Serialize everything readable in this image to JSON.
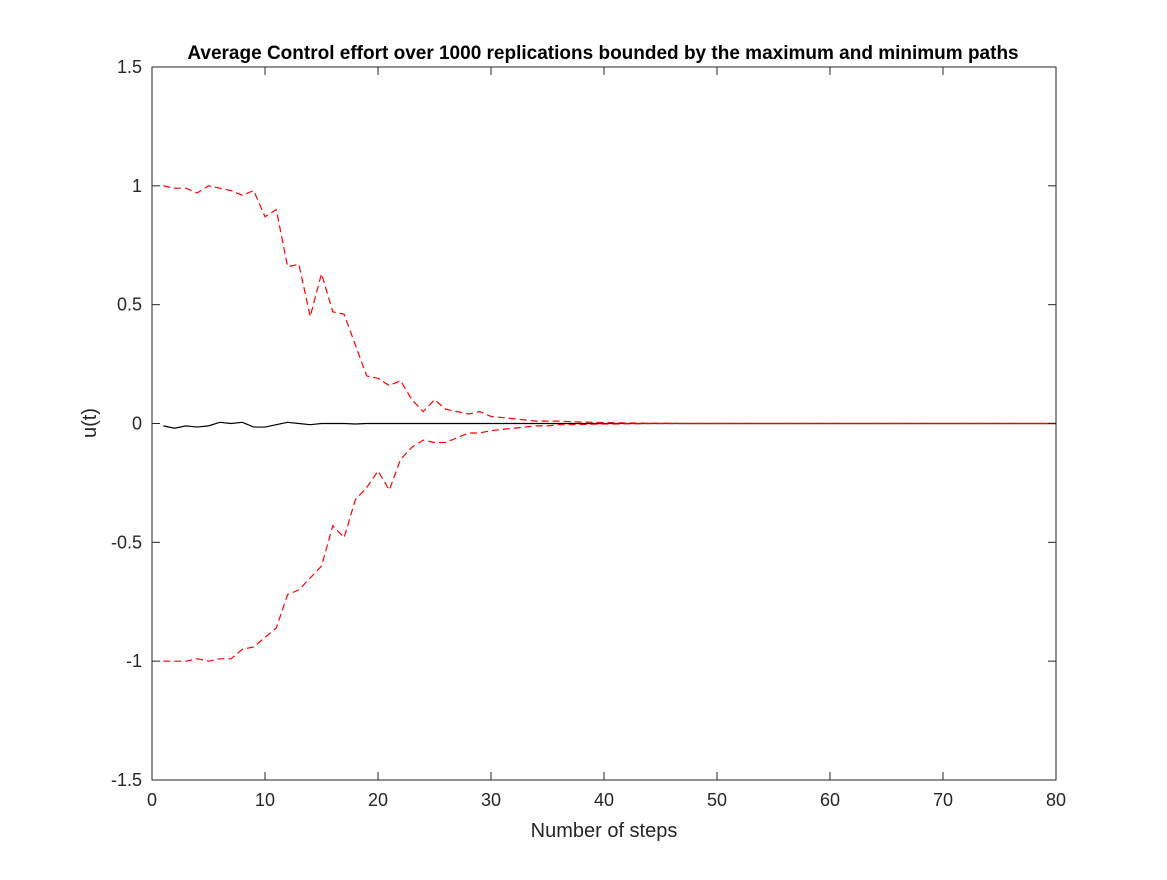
{
  "chart_data": {
    "type": "line",
    "title": "Average Control effort over 1000 replications bounded by the maximum and minimum paths",
    "xlabel": "Number of steps",
    "ylabel": "u(t)",
    "xlim": [
      0,
      80
    ],
    "ylim": [
      -1.5,
      1.5
    ],
    "xticks": [
      "0",
      "10",
      "20",
      "30",
      "40",
      "50",
      "60",
      "70",
      "80"
    ],
    "yticks": [
      "-1.5",
      "-1",
      "-0.5",
      "0",
      "0.5",
      "1",
      "1.5"
    ],
    "grid": false,
    "legend": "none",
    "series": [
      {
        "style": "solid",
        "color": "#000000",
        "x": [
          1,
          2,
          3,
          4,
          5,
          6,
          7,
          8,
          9,
          10,
          11,
          12,
          13,
          14,
          15,
          16,
          17,
          18,
          19,
          20,
          21,
          22,
          23,
          24,
          25,
          26,
          27,
          28,
          29,
          30,
          31,
          32,
          33,
          34,
          35,
          36,
          37,
          38,
          39,
          40,
          41,
          42,
          43,
          44,
          45,
          46,
          47,
          48,
          49,
          50,
          51,
          52,
          53,
          54,
          55,
          56,
          57,
          58,
          59,
          60,
          61,
          62,
          63,
          64,
          65,
          66,
          67,
          68,
          69,
          70,
          71,
          72,
          73,
          74,
          75,
          76,
          77,
          78,
          79,
          80
        ],
        "y": [
          -0.01,
          -0.02,
          -0.01,
          -0.015,
          -0.01,
          0.005,
          0.0,
          0.005,
          -0.015,
          -0.015,
          -0.005,
          0.005,
          0.0,
          -0.005,
          0.0,
          0.0,
          0.0,
          -0.002,
          0.0,
          0.0,
          0.0,
          0.0,
          0.0,
          0.0,
          0.0,
          0.0,
          0.0,
          0.0,
          0.0,
          0.0,
          0.0,
          0.0,
          0.0,
          0.0,
          0.0,
          0.0,
          0.0,
          0.0,
          0.0,
          0.0,
          0.0,
          0.0,
          0.0,
          0.0,
          0.0,
          0.0,
          0.0,
          0.0,
          0.0,
          0.0,
          0.0,
          0.0,
          0.0,
          0.0,
          0.0,
          0.0,
          0.0,
          0.0,
          0.0,
          0.0,
          0.0,
          0.0,
          0.0,
          0.0,
          0.0,
          0.0,
          0.0,
          0.0,
          0.0,
          0.0,
          0.0,
          0.0,
          0.0,
          0.0,
          0.0,
          0.0,
          0.0,
          0.0,
          0.0,
          0.0
        ]
      },
      {
        "style": "dashed",
        "color": "#ff0000",
        "x": [
          1,
          2,
          3,
          4,
          5,
          6,
          7,
          8,
          9,
          10,
          11,
          12,
          13,
          14,
          15,
          16,
          17,
          18,
          19,
          20,
          21,
          22,
          23,
          24,
          25,
          26,
          27,
          28,
          29,
          30,
          31,
          32,
          33,
          34,
          35,
          36,
          37,
          38,
          39,
          40,
          41,
          42,
          43,
          44,
          45,
          46,
          47,
          48,
          49,
          50,
          51,
          52,
          53,
          54,
          55,
          56,
          57,
          58,
          59,
          60,
          61,
          62,
          63,
          64,
          65,
          66,
          67,
          68,
          69,
          70,
          71,
          72,
          73,
          74,
          75,
          76,
          77,
          78,
          79,
          80
        ],
        "y": [
          1.0,
          0.99,
          0.99,
          0.97,
          1.0,
          0.99,
          0.98,
          0.96,
          0.98,
          0.87,
          0.9,
          0.66,
          0.67,
          0.45,
          0.63,
          0.47,
          0.46,
          0.33,
          0.2,
          0.19,
          0.16,
          0.18,
          0.1,
          0.05,
          0.1,
          0.06,
          0.05,
          0.04,
          0.05,
          0.03,
          0.025,
          0.02,
          0.015,
          0.01,
          0.01,
          0.01,
          0.008,
          0.006,
          0.005,
          0.004,
          0.003,
          0.002,
          0.002,
          0.001,
          0.001,
          0.001,
          0.0,
          0.0,
          0.0,
          0.0,
          0.0,
          0.0,
          0.0,
          0.0,
          0.0,
          0.0,
          0.0,
          0.0,
          0.0,
          0.0,
          0.0,
          0.0,
          0.0,
          0.0,
          0.0,
          0.0,
          0.0,
          0.0,
          0.0,
          0.0,
          0.0,
          0.0,
          0.0,
          0.0,
          0.0,
          0.0,
          0.0,
          0.0,
          0.0,
          0.0
        ]
      },
      {
        "style": "dashed",
        "color": "#ff0000",
        "x": [
          1,
          2,
          3,
          4,
          5,
          6,
          7,
          8,
          9,
          10,
          11,
          12,
          13,
          14,
          15,
          16,
          17,
          18,
          19,
          20,
          21,
          22,
          23,
          24,
          25,
          26,
          27,
          28,
          29,
          30,
          31,
          32,
          33,
          34,
          35,
          36,
          37,
          38,
          39,
          40,
          41,
          42,
          43,
          44,
          45,
          46,
          47,
          48,
          49,
          50,
          51,
          52,
          53,
          54,
          55,
          56,
          57,
          58,
          59,
          60,
          61,
          62,
          63,
          64,
          65,
          66,
          67,
          68,
          69,
          70,
          71,
          72,
          73,
          74,
          75,
          76,
          77,
          78,
          79,
          80
        ],
        "y": [
          -1.0,
          -1.0,
          -1.0,
          -0.99,
          -1.0,
          -0.99,
          -0.99,
          -0.95,
          -0.94,
          -0.9,
          -0.86,
          -0.72,
          -0.7,
          -0.65,
          -0.6,
          -0.43,
          -0.48,
          -0.32,
          -0.27,
          -0.2,
          -0.28,
          -0.15,
          -0.1,
          -0.07,
          -0.08,
          -0.08,
          -0.06,
          -0.04,
          -0.04,
          -0.03,
          -0.025,
          -0.02,
          -0.015,
          -0.01,
          -0.01,
          -0.005,
          -0.005,
          -0.004,
          -0.003,
          -0.002,
          -0.002,
          -0.001,
          -0.001,
          0.0,
          0.0,
          0.0,
          0.0,
          0.0,
          0.0,
          0.0,
          0.0,
          0.0,
          0.0,
          0.0,
          0.0,
          0.0,
          0.0,
          0.0,
          0.0,
          0.0,
          0.0,
          0.0,
          0.0,
          0.0,
          0.0,
          0.0,
          0.0,
          0.0,
          0.0,
          0.0,
          0.0,
          0.0,
          0.0,
          0.0,
          0.0,
          0.0,
          0.0,
          0.0,
          0.0,
          0.0
        ]
      }
    ]
  }
}
